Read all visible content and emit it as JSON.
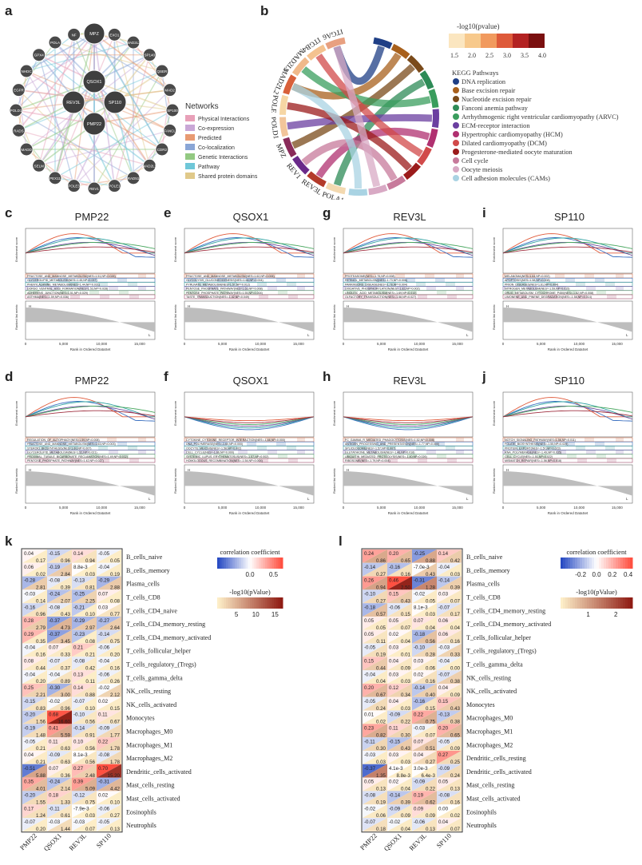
{
  "panel_letters": {
    "a": "a",
    "b": "b",
    "c": "c",
    "d": "d",
    "e": "e",
    "f": "f",
    "g": "g",
    "h": "h",
    "i": "i",
    "j": "j",
    "k": "k",
    "l": "l"
  },
  "network": {
    "center_genes": [
      "QSOX1",
      "REV3L",
      "SP110",
      "PMP22",
      "MPZ"
    ],
    "outer_genes": [
      "POLE",
      "EXO1",
      "MAD2L2",
      "SP140",
      "QSER",
      "MAD2",
      "SP100",
      "FANCL",
      "CDR2",
      "MAD2L1",
      "RAD51",
      "POLE1",
      "REV1",
      "POLE3",
      "PEX11",
      "SELM",
      "MADD",
      "RADS",
      "POLD1",
      "EGFR",
      "NHDC",
      "GPX4",
      "POLA",
      "NF"
    ],
    "legend_title": "Networks",
    "legend": [
      {
        "label": "Physical Interactions",
        "color": "#e8a0b8"
      },
      {
        "label": "Co-expression",
        "color": "#c9a7d6"
      },
      {
        "label": "Predicted",
        "color": "#e89a72"
      },
      {
        "label": "Co-localization",
        "color": "#8aa6d6"
      },
      {
        "label": "Genetic Interactions",
        "color": "#93c982"
      },
      {
        "label": "Pathway",
        "color": "#6fc7d8"
      },
      {
        "label": "Shared protein domains",
        "color": "#e0c98a"
      }
    ]
  },
  "chord": {
    "genes": [
      "ITGA6",
      "ITGB4",
      "MAD2L1",
      "MAD2L2",
      "POLE",
      "POLD1",
      "MPZ",
      "REV1",
      "REV3L",
      "POLA1"
    ],
    "pvalue_title": "-log10(pvalue)",
    "pvalue_ticks": [
      "1.5",
      "2.0",
      "2.5",
      "3.0",
      "3.5",
      "4.0"
    ],
    "kegg_title": "KEGG Pathways",
    "kegg": [
      {
        "label": "DNA replication",
        "color": "#1f3f86"
      },
      {
        "label": "Base excision repair",
        "color": "#a8601c"
      },
      {
        "label": "Nucleotide excision repair",
        "color": "#7a4a1a"
      },
      {
        "label": "Fanconi anemia pathway",
        "color": "#2e8b57"
      },
      {
        "label": "Arrhythmogenic right ventricular cardiomyopathy (ARVC)",
        "color": "#3a9d5d"
      },
      {
        "label": "ECM-receptor interaction",
        "color": "#6b3fa0"
      },
      {
        "label": "Hypertrophic cardiomyopathy (HCM)",
        "color": "#b03070"
      },
      {
        "label": "Dilated cardiomyopathy (DCM)",
        "color": "#d14a4a"
      },
      {
        "label": "Progesterone-mediated oocyte maturation",
        "color": "#9b1b1b"
      },
      {
        "label": "Cell cycle",
        "color": "#c77a9b"
      },
      {
        "label": "Oocyte meiosis",
        "color": "#d8a9c4"
      },
      {
        "label": "Cell adhesion molecules (CAMs)",
        "color": "#a9d3e3"
      }
    ]
  },
  "gsea": {
    "y_top": "Enrichment score",
    "y_bottom": "Ranked list metric",
    "x_label": "Rank in Ordered DataSet",
    "x_ticks": [
      "0",
      "5,000",
      "10,000",
      "15,000"
    ],
    "h_label": "H",
    "l_label": "L",
    "panels": [
      {
        "id": "c",
        "gene": "PMP22",
        "dir": "up",
        "sets": [
          "FRUCTOSE_AND_MANNOSE_METABOLISM(NES=1.51,NP=0.026)",
          "GLYCEROLIPID_METABOLISM(NES=1.45,NP=0.037)",
          "PHENYLALANINE_METABOLISM(NES=1.44,NP=0.031)",
          "DORSO_VENTRAL_AXIS_FORMATION(NES=1.53,NP=0.028)",
          "ADHERENS_JUNCTION(NES=1.51,NP=0.029)",
          "ASTHMA(NES=-1.59,NP=0.036)"
        ]
      },
      {
        "id": "e",
        "gene": "QSOX1",
        "dir": "up",
        "sets": [
          "FRUCTOSE_AND_MANNOSE_METABOLISM(NES=1.62,NP=0.006)",
          "GLYCOLYSIS_GLUCONEOGENESIS(NES=1.68,NP=0.004)",
          "PYRUVATE_METABOLISM(NES=1.57,NP=0.012)",
          "PENTOSE_PHOSPHATE_PATHWAY(NES=1.63,NP=0.008)",
          "PENTOSE_PHOSPHATE_PATHWAY(NES=1.55,NP=0.004)",
          "TASTE_TRANSDUCTION(NES=-1.42,NP=0.049)"
        ]
      },
      {
        "id": "g",
        "gene": "REV3L",
        "dir": "up",
        "sets": [
          "PROTEASOME(NES=-1.75,NP=0.008)",
          "RETINOL_METABOLISM(NES=-1.73,NP=0.006)",
          "PARKINSONS_DISEASE(NES=-1.78,NP=0.004)",
          "OXIDATIVE_PHOSPHORYLATION(NES=-1.82,NP=0.002)",
          "LINOLEIC_ACID_METABOLISM(NES=-1.69,NP=0.010)",
          "OLFACTORY_TRANSDUCTION(NES=-1.58,NP=0.027)"
        ]
      },
      {
        "id": "i",
        "gene": "SP110",
        "dir": "up",
        "sets": [
          "MELANOMA(NES=1.64,NP=0.002)",
          "APOPTOSIS(NES=1.58,NP=0.008)",
          "PRION_DISEASES(NES=1.61,NP=0.004)",
          "NITROGEN_METABOLISM(NES=-1.59,NP=0.015)",
          "DRUG_METABOLISM_CYTOCHROME_P450(NES=-1.62,NP=0.008)",
          "LIMONENE_AND_PINENE_DEGRADATION(NES=-1.58,NP=0.014)"
        ]
      },
      {
        "id": "d",
        "gene": "PMP22",
        "dir": "up",
        "sets": [
          "REGULATION_OF_AUTOPHAGY(NES=1.59,NP=0.008)",
          "FRUCTOSE_AND_MANNOSE_METABOLISM(NES=1.63,NP=0.003)",
          "STEROID_BIOSYNTHESIS(NES=1.60,NP=0.007)",
          "GLYCEROLIPID_METABOLISM(NES=1.52,NP=0.021)",
          "PROXIMAL_TUBULE_BICARBONATE_RECLAMATION(NES=1.49,NP=0.032)",
          "PENTOSE_PHOSPHATE_PATHWAY(NES=1.42,NP=0.027)"
        ]
      },
      {
        "id": "f",
        "gene": "QSOX1",
        "dir": "down",
        "sets": [
          "CYTOKINE_CYTOKINE_RECEPTOR_INTERACTION(NES=-1.68,NP=0.000)",
          "DNA_POLYMERASE(NES=-1.60,NP=0.000)",
          "OOCYTE_MEIOSIS(NES=-1.58,NP=0.002)",
          "CELL_CYCLE(NES=-1.66,NP=0.000)",
          "SYSTEMIC_LUPUS_ERYTHEMATOSUS(NES=-1.57,NP=0.002)",
          "HOMOLOGOUS_RECOMBINATION(NES=-1.54,NP=0.004)"
        ]
      },
      {
        "id": "h",
        "gene": "REV3L",
        "dir": "down",
        "sets": [
          "FC_GAMMA_R_MEDIATED_PHAGOCYTOSIS(NES=1.52,NP=0.008)",
          "ANTIGEN_PROCESSING_AND_PRESENTATION(NES=-1.77,NP=0.000)",
          "SPLICEOSOME(NES=-1.57,NP=0.007)",
          "GLUTATHIONE_METABOLISM(NES=-1.46,NP=0.018)",
          "UBIQUITIN_MEDIATED_PROTEOLYSIS(NES=-1.40,NP=0.026)",
          "RIBOSOME(NES=-1.79,NP=0.004)"
        ]
      },
      {
        "id": "j",
        "gene": "SP110",
        "dir": "up",
        "sets": [
          "NOTCH_SIGNALING_PATHWAY(NES=1.56,NP=0.011)",
          "FOLATE_BIOSYNTHESIS(NES=-1.55,NP=0.029)",
          "PROTEIN_EXPORT(NES=-1.57,NP=0.023)",
          "RNA_POLYMERASE(NES=-1.49,NP=0.035)",
          "CELL_CYCLE(NES=-1.51,NP=0.022)",
          "MISMATCH_REPAIR(NES=-1.56,NP=0.018)"
        ]
      }
    ]
  },
  "chart_data": [
    {
      "type": "heatmap",
      "panel": "k",
      "title": "correlation coefficient",
      "colorbar_ticks": [
        "0.0",
        "0.5"
      ],
      "pvalue_title": "-log10(pValue)",
      "pvalue_ticks": [
        "5",
        "10",
        "15"
      ],
      "columns": [
        "PMP22",
        "QSOX1",
        "REV3L",
        "SP110"
      ],
      "rows": [
        "B_cells_naive",
        "B_cells_memory",
        "Plasma_cells",
        "T_cells_CD8",
        "T_cells_CD4_naive",
        "T_cells_CD4_memory_resting",
        "T_cells_CD4_memory_activated",
        "T_cells_follicular_helper",
        "T_cells_regulatory_(Tregs)",
        "T_cells_gamma_delta",
        "NK_cells_resting",
        "NK_cells_activated",
        "Monocytes",
        "Macrophages_M0",
        "Macrophages_M1",
        "Macrophages_M2",
        "Dendritic_cells_activated",
        "Mast_cells_resting",
        "Mast_cells_activated",
        "Eosinophils",
        "Neutrophils"
      ],
      "corr": [
        [
          0.04,
          -0.15,
          0.14,
          -0.05
        ],
        [
          0.064,
          -0.19,
          0.0088,
          -0.04
        ],
        [
          -0.28,
          -0.08,
          -0.13,
          -0.29
        ],
        [
          -0.03,
          -0.24,
          -0.25,
          0.07
        ],
        [
          -0.16,
          -0.08,
          -0.21,
          0.03
        ],
        [
          0.28,
          -0.37,
          -0.29,
          -0.27
        ],
        [
          0.29,
          -0.37,
          -0.23,
          -0.14
        ],
        [
          -0.04,
          0.07,
          0.21,
          -0.06
        ],
        [
          0.08,
          -0.07,
          -0.08,
          -0.04
        ],
        [
          -0.04,
          -0.04,
          0.13,
          -0.06
        ],
        [
          0.25,
          -0.3,
          0.14,
          -0.02
        ],
        [
          -0.15,
          -0.02,
          -0.07,
          0.02
        ],
        [
          -0.2,
          0.68,
          -0.1,
          0.11
        ],
        [
          -0.19,
          0.41,
          -0.14,
          -0.09
        ],
        [
          -0.05,
          0.11,
          0.1,
          0.22
        ],
        [
          0.04,
          -0.09,
          0.0081,
          -0.08
        ],
        [
          -0.51,
          0.07,
          0.27,
          0.7
        ],
        [
          0.35,
          -0.24,
          0.39,
          -0.31
        ],
        [
          -0.2,
          0.18,
          -0.12,
          0.02
        ],
        [
          0.17,
          -0.11,
          -0.0079,
          -0.06
        ],
        [
          -0.07,
          -0.03,
          -0.03,
          -0.05
        ]
      ],
      "logp": [
        [
          0.17,
          0.96,
          0.94,
          0.05
        ],
        [
          0.02,
          2.84,
          0.03,
          0.19
        ],
        [
          2.81,
          0.39,
          0.81,
          2.88
        ],
        [
          0.14,
          2.07,
          2.25,
          0.08
        ],
        [
          0.96,
          0.43,
          0.1,
          0.77
        ],
        [
          2.79,
          4.73,
          2.97,
          2.64
        ],
        [
          0.35,
          3.45,
          0.08,
          0.75
        ],
        [
          0.16,
          0.33,
          0.21,
          0.2
        ],
        [
          0.44,
          0.37,
          0.42,
          0.16
        ],
        [
          0.2,
          0.89,
          0.11,
          0.26
        ],
        [
          2.21,
          3.0,
          0.88,
          2.12
        ],
        [
          0.83,
          0.96,
          0.1,
          0.15
        ],
        [
          1.56,
          16.6,
          0.56,
          0.67
        ],
        [
          1.48,
          5.59,
          0.91,
          1.77
        ],
        [
          0.21,
          0.63,
          0.56,
          1.78
        ],
        [
          0.21,
          0.63,
          0.56,
          1.78
        ],
        [
          5.88,
          0.36,
          2.48,
          15.2
        ],
        [
          4.01,
          2.14,
          5.09,
          4.42
        ],
        [
          1.55,
          1.33,
          0.75,
          0.1
        ],
        [
          1.24,
          0.61,
          0.03,
          0.27
        ],
        [
          0.2,
          1.44,
          0.07,
          0.13
        ]
      ]
    },
    {
      "type": "heatmap",
      "panel": "l",
      "title": "correlation coefficient",
      "colorbar_ticks": [
        "-0.2",
        "0.0",
        "0.2",
        "0.4"
      ],
      "pvalue_title": "-log10(pValue)",
      "pvalue_ticks": [
        "1",
        "2"
      ],
      "columns": [
        "PMP22",
        "QSOX1",
        "REV3L",
        "SP110"
      ],
      "rows": [
        "B_cells_naive",
        "B_cells_memory",
        "Plasma_cells",
        "T_cells_CD8",
        "T_cells_CD4_memory_resting",
        "T_cells_CD4_memory_activated",
        "T_cells_follicular_helper",
        "T_cells_regulatory_(Tregs)",
        "T_cells_gamma_delta",
        "NK_cells_resting",
        "NK_cells_activated",
        "Monocytes",
        "Macrophages_M0",
        "Macrophages_M1",
        "Macrophages_M2",
        "Dendritic_cells_resting",
        "Dendritic_cells_activated",
        "Mast_cells_resting",
        "Mast_cells_activated",
        "Eosinophils",
        "Neutrophils"
      ],
      "corr": [
        [
          0.24,
          0.2,
          -0.25,
          0.14
        ],
        [
          -0.14,
          -0.16,
          -0.007,
          -0.04
        ],
        [
          0.26,
          0.46,
          -0.31,
          -0.14
        ],
        [
          -0.1,
          0.15,
          -0.02,
          0.03
        ],
        [
          -0.18,
          -0.06,
          0.0081,
          -0.07
        ],
        [
          0.05,
          0.05,
          0.07,
          0.06
        ],
        [
          0.05,
          0.02,
          -0.18,
          0.06
        ],
        [
          -0.05,
          0.03,
          -0.1,
          -0.03
        ],
        [
          0.15,
          0.04,
          0.03,
          -0.04
        ],
        [
          -0.04,
          0.03,
          0.02,
          -0.07
        ],
        [
          0.2,
          0.12,
          -0.14,
          0.04
        ],
        [
          -0.05,
          0.04,
          -0.16,
          0.15
        ],
        [
          0.01,
          -0.09,
          0.22,
          -0.13
        ],
        [
          0.23,
          0.11,
          -0.03,
          0.2
        ],
        [
          -0.11,
          -0.15,
          0.07,
          -0.05
        ],
        [
          -0.03,
          0.03,
          0.04,
          0.27
        ],
        [
          -0.37,
          0.0041,
          0.003,
          -0.09
        ],
        [
          0.05,
          0.02,
          -0.09,
          0.05
        ],
        [
          -0.08,
          -0.14,
          0.19,
          -0.08
        ],
        [
          -0.02,
          -0.09,
          0.09,
          0.0
        ],
        [
          -0.07,
          -0.02,
          -0.06,
          0.04
        ]
      ],
      "logp": [
        [
          0.86,
          0.65,
          0.88,
          0.42
        ],
        [
          0.27,
          0.16,
          0.43,
          0.03
        ],
        [
          0.94,
          2.5,
          1.28,
          0.39
        ],
        [
          0.27,
          0.43,
          0.05,
          0.07
        ],
        [
          0.57,
          0.15,
          0.03,
          0.17
        ],
        [
          0.05,
          0.07,
          0.04,
          0.04
        ],
        [
          0.11,
          0.04,
          0.56,
          0.16
        ],
        [
          0.19,
          0.01,
          0.28,
          0.33
        ],
        [
          0.44,
          0.09,
          0.06,
          0.0
        ],
        [
          0.04,
          0.03,
          0.16,
          0.38
        ],
        [
          0.67,
          0.34,
          0.4,
          0.09
        ],
        [
          0.24,
          0.03,
          0.15,
          0.43
        ],
        [
          0.02,
          0.22,
          0.75,
          0.38
        ],
        [
          0.82,
          0.3,
          0.07,
          0.65
        ],
        [
          0.3,
          0.43,
          0.51,
          0.09
        ],
        [
          0.03,
          0.03,
          0.27,
          0.25
        ],
        [
          1.35,
          0.0088,
          0.0064,
          0.24
        ],
        [
          0.13,
          0.04,
          0.22,
          0.13
        ],
        [
          0.19,
          0.39,
          0.62,
          0.16
        ],
        [
          0.06,
          0.09,
          0.09,
          0.02
        ],
        [
          0.18,
          0.04,
          0.13,
          0.07
        ]
      ]
    }
  ]
}
